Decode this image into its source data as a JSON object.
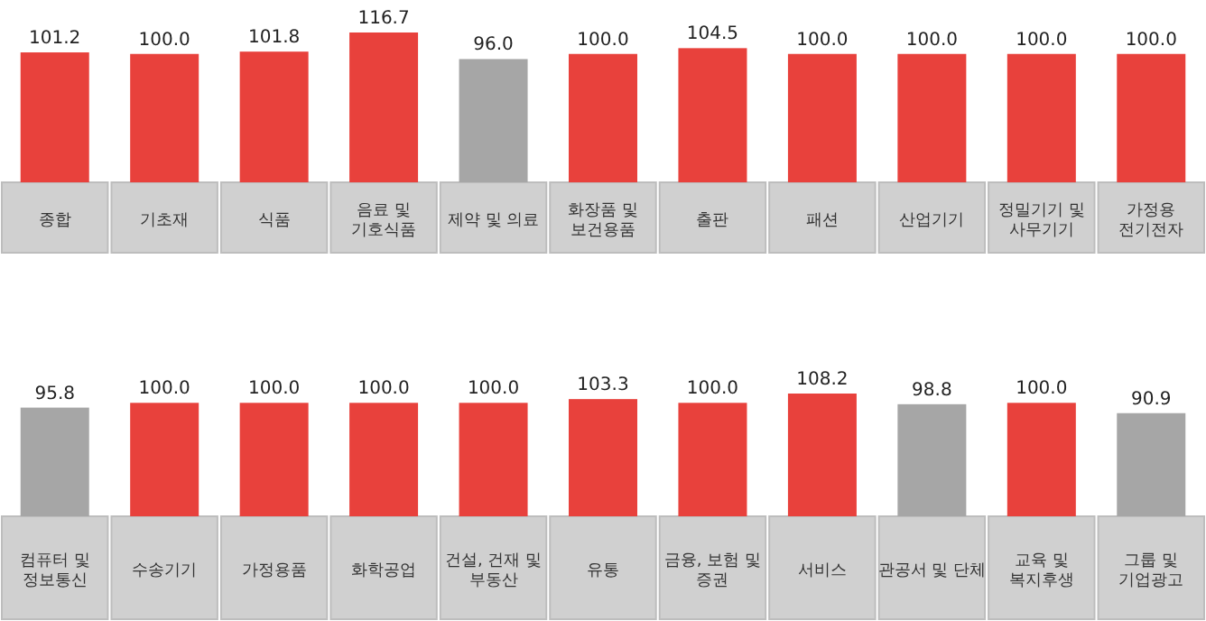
{
  "chart_data": [
    {
      "type": "bar",
      "categories": [
        "종합",
        "기초재",
        "식품",
        "음료 및\n기호식품",
        "제약 및 의료",
        "화장품 및\n보건용품",
        "출판",
        "패션",
        "산업기기",
        "정밀기기 및\n사무기기",
        "가정용\n전기전자"
      ],
      "values": [
        101.2,
        100.0,
        101.8,
        116.7,
        96.0,
        100.0,
        104.5,
        100.0,
        100.0,
        100.0,
        100.0
      ],
      "value_labels": [
        "101.2",
        "100.0",
        "101.8",
        "116.7",
        "96.0",
        "100.0",
        "104.5",
        "100.0",
        "100.0",
        "100.0",
        "100.0"
      ],
      "colors": [
        "#e8413c",
        "#e8413c",
        "#e8413c",
        "#e8413c",
        "#a6a6a6",
        "#e8413c",
        "#e8413c",
        "#e8413c",
        "#e8413c",
        "#e8413c",
        "#e8413c"
      ]
    },
    {
      "type": "bar",
      "categories": [
        "컴퓨터 및\n정보통신",
        "수송기기",
        "가정용품",
        "화학공업",
        "건설, 건재 및\n부동산",
        "유통",
        "금융, 보험 및\n증권",
        "서비스",
        "관공서 및 단체",
        "교육 및\n복지후생",
        "그룹 및\n기업광고"
      ],
      "values": [
        95.8,
        100.0,
        100.0,
        100.0,
        100.0,
        103.3,
        100.0,
        108.2,
        98.8,
        100.0,
        90.9
      ],
      "value_labels": [
        "95.8",
        "100.0",
        "100.0",
        "100.0",
        "100.0",
        "103.3",
        "100.0",
        "108.2",
        "98.8",
        "100.0",
        "90.9"
      ],
      "colors": [
        "#a6a6a6",
        "#e8413c",
        "#e8413c",
        "#e8413c",
        "#e8413c",
        "#e8413c",
        "#e8413c",
        "#e8413c",
        "#a6a6a6",
        "#e8413c",
        "#a6a6a6"
      ]
    }
  ]
}
